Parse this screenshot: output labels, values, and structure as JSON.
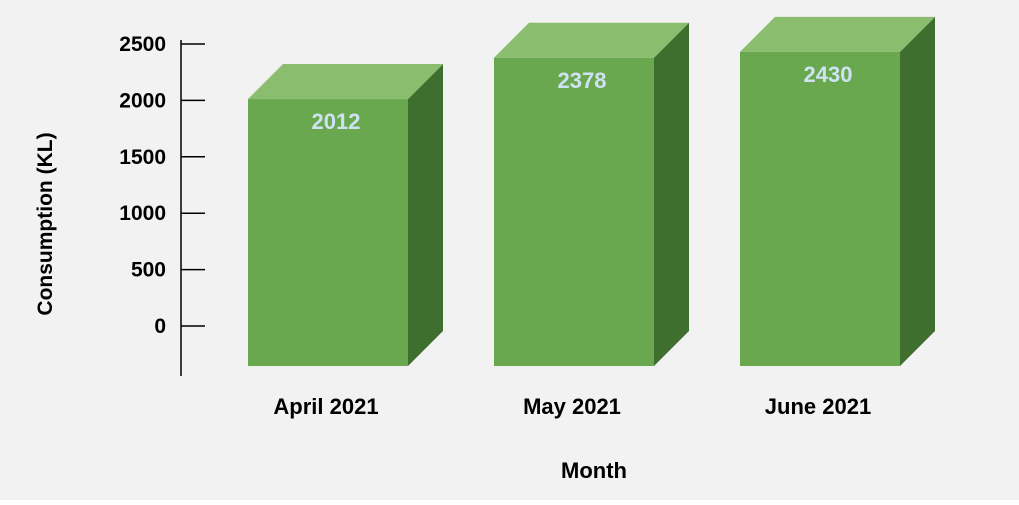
{
  "chart_data": {
    "type": "bar",
    "style": "3d-column",
    "categories": [
      "April 2021",
      "May 2021",
      "June 2021"
    ],
    "series": [
      {
        "values": [
          2012,
          2378,
          2430
        ]
      }
    ],
    "data_labels": [
      "2012",
      "2378",
      "2430"
    ],
    "xlabel": "Month",
    "ylabel": "Consumption (KL)",
    "yticks": [
      "2500",
      "2000",
      "1500",
      "1000",
      "500",
      "0"
    ],
    "ytick_values": [
      2500,
      2000,
      1500,
      1000,
      500,
      0
    ],
    "grid": false,
    "legend": "none",
    "colors": {
      "background": "#f2f2f2",
      "bar_front": "#6aa84f",
      "bar_top": "#8bbd6e",
      "bar_side": "#3f6f2e",
      "data_label": "#cfe2f3",
      "axis": "#000000",
      "text": "#000000"
    }
  }
}
